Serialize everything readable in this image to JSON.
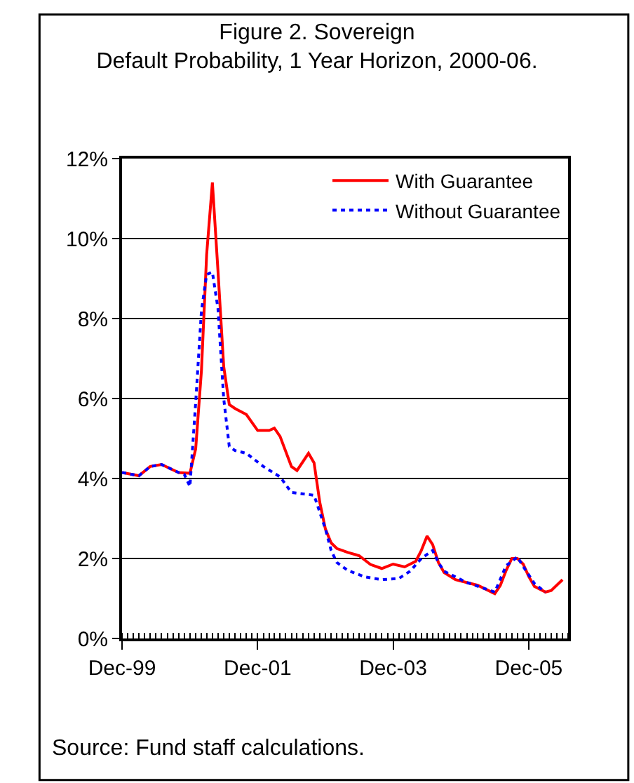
{
  "chart_data": {
    "type": "line",
    "title": "Figure 2. Sovereign\nDefault Probability, 1 Year Horizon, 2000-06.",
    "series": [
      {
        "name": "With Guarantee",
        "color": "#ff0000",
        "line_style": "solid",
        "x": [
          "1999-12",
          "2000-03",
          "2000-05",
          "2000-07",
          "2000-10",
          "2000-12",
          "2001-01",
          "2001-02",
          "2001-03",
          "2001-04",
          "2001-05",
          "2001-06",
          "2001-07",
          "2001-08",
          "2001-10",
          "2001-12",
          "2002-02",
          "2002-03",
          "2002-04",
          "2002-06",
          "2002-07",
          "2002-09",
          "2002-10",
          "2002-11",
          "2002-12",
          "2003-01",
          "2003-02",
          "2003-04",
          "2003-06",
          "2003-08",
          "2003-10",
          "2003-12",
          "2004-02",
          "2004-04",
          "2004-05",
          "2004-06",
          "2004-07",
          "2004-08",
          "2004-09",
          "2004-11",
          "2005-03",
          "2005-06",
          "2005-07",
          "2005-08",
          "2005-09",
          "2005-10",
          "2005-11",
          "2005-12",
          "2006-01",
          "2006-03",
          "2006-04",
          "2006-06"
        ],
        "values": [
          4.15,
          4.07,
          4.3,
          4.35,
          4.15,
          4.13,
          4.74,
          6.7,
          9.6,
          11.4,
          9.2,
          6.8,
          5.85,
          5.75,
          5.6,
          5.2,
          5.2,
          5.26,
          5.05,
          4.3,
          4.2,
          4.63,
          4.39,
          3.4,
          2.74,
          2.39,
          2.25,
          2.15,
          2.07,
          1.85,
          1.75,
          1.86,
          1.79,
          1.93,
          2.2,
          2.56,
          2.35,
          1.9,
          1.65,
          1.47,
          1.33,
          1.12,
          1.33,
          1.7,
          2.0,
          2.0,
          1.86,
          1.55,
          1.3,
          1.16,
          1.2,
          1.47
        ]
      },
      {
        "name": "Without Guarantee",
        "color": "#0000ff",
        "line_style": "dotted",
        "x": [
          "1999-12",
          "2000-03",
          "2000-05",
          "2000-07",
          "2000-10",
          "2000-11",
          "2000-12",
          "2001-01",
          "2001-02",
          "2001-03",
          "2001-04",
          "2001-05",
          "2001-06",
          "2001-07",
          "2001-08",
          "2001-10",
          "2002-01",
          "2002-04",
          "2002-06",
          "2002-09",
          "2002-10",
          "2002-12",
          "2003-01",
          "2003-02",
          "2003-04",
          "2003-07",
          "2003-10",
          "2004-01",
          "2004-03",
          "2004-05",
          "2004-07",
          "2004-08",
          "2004-09",
          "2005-01",
          "2005-06",
          "2005-08",
          "2005-10",
          "2005-11",
          "2006-01",
          "2006-03"
        ],
        "values": [
          4.15,
          4.07,
          4.3,
          4.35,
          4.15,
          4.1,
          3.8,
          5.9,
          8.2,
          9.1,
          9.16,
          8.25,
          6.0,
          4.8,
          4.7,
          4.63,
          4.3,
          4.04,
          3.65,
          3.6,
          3.58,
          2.74,
          2.2,
          1.9,
          1.7,
          1.54,
          1.47,
          1.5,
          1.68,
          2.0,
          2.2,
          1.9,
          1.68,
          1.4,
          1.16,
          1.82,
          2.04,
          1.8,
          1.37,
          1.16
        ]
      }
    ],
    "xlim": [
      "1999-12",
      "2006-07"
    ],
    "xticks": [
      {
        "value": "1999-12",
        "label": "Dec-99"
      },
      {
        "value": "2001-12",
        "label": "Dec-01"
      },
      {
        "value": "2003-12",
        "label": "Dec-03"
      },
      {
        "value": "2005-12",
        "label": "Dec-05"
      }
    ],
    "ylim": [
      0,
      12
    ],
    "yticks": [
      {
        "value": 0,
        "label": "0%"
      },
      {
        "value": 2,
        "label": "2%"
      },
      {
        "value": 4,
        "label": "4%"
      },
      {
        "value": 6,
        "label": "6%"
      },
      {
        "value": 8,
        "label": "8%"
      },
      {
        "value": 10,
        "label": "10%"
      },
      {
        "value": 12,
        "label": "12%"
      }
    ],
    "grid": "y",
    "legend": "top right",
    "marker": "none",
    "annotations": [
      "Source: Fund staff calculations."
    ]
  }
}
